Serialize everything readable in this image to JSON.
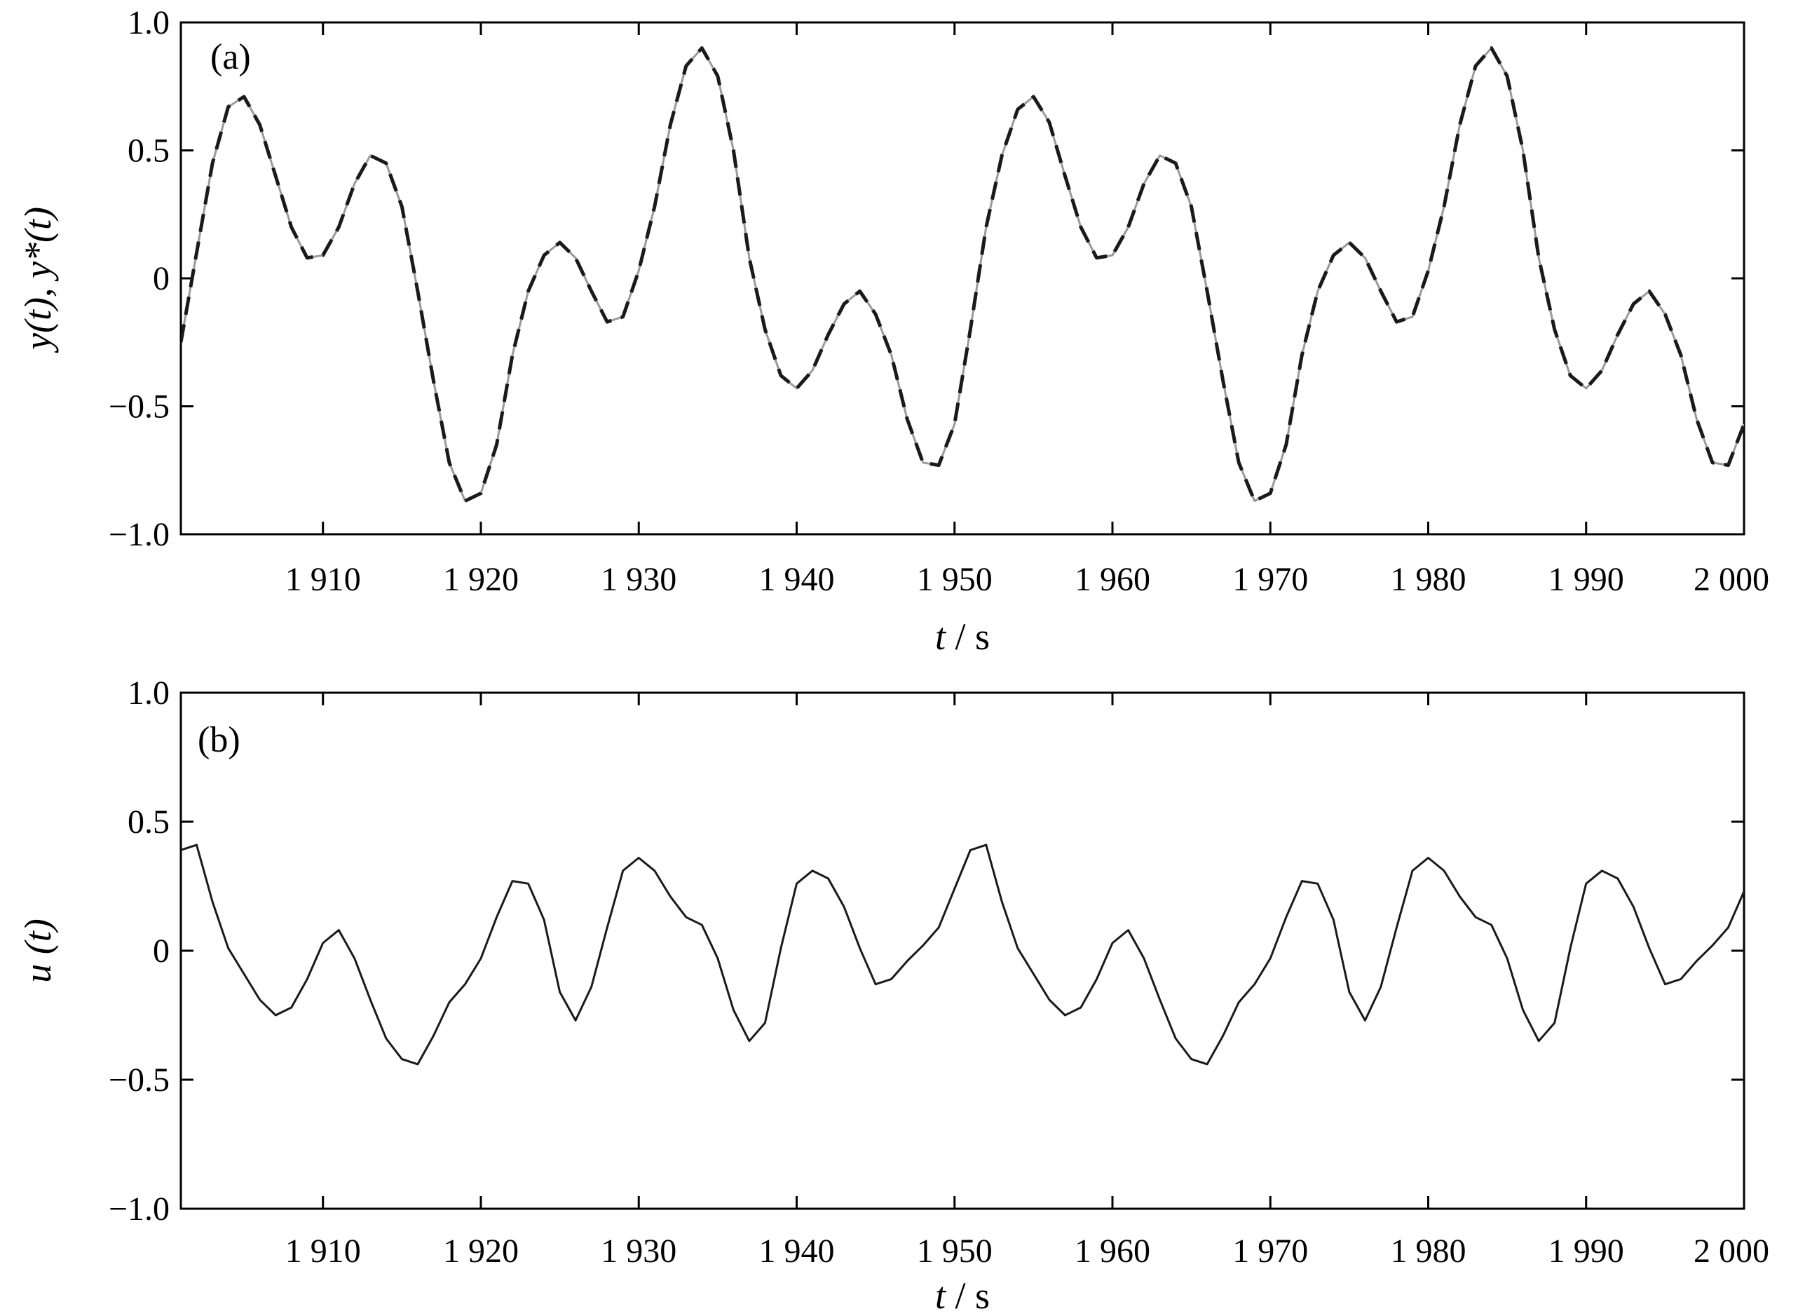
{
  "chart_data": [
    {
      "type": "line",
      "panel_label": "(a)",
      "xlabel_var": "t",
      "xlabel_sep": " / ",
      "xlabel_unit": "s",
      "ylabel": "y(t), y*(t)",
      "xlim": [
        1901,
        2000
      ],
      "ylim": [
        -1.0,
        1.0
      ],
      "xticks": [
        1910,
        1920,
        1930,
        1940,
        1950,
        1960,
        1970,
        1980,
        1990,
        2000
      ],
      "xtick_labels": [
        "1 910",
        "1 920",
        "1 930",
        "1 940",
        "1 950",
        "1 960",
        "1 970",
        "1 980",
        "1 990",
        "2 000"
      ],
      "yticks": [
        1.0,
        0.5,
        0,
        -0.5,
        -1.0
      ],
      "ytick_labels": [
        "1.0",
        "0.5",
        "0",
        "−0.5",
        "−1.0"
      ],
      "grid": false,
      "x": [
        1901,
        1902,
        1903,
        1904,
        1905,
        1906,
        1907,
        1908,
        1909,
        1910,
        1911,
        1912,
        1913,
        1914,
        1915,
        1916,
        1917,
        1918,
        1919,
        1920,
        1921,
        1922,
        1923,
        1924,
        1925,
        1926,
        1927,
        1928,
        1929,
        1930,
        1931,
        1932,
        1933,
        1934,
        1935,
        1936,
        1937,
        1938,
        1939,
        1940,
        1941,
        1942,
        1943,
        1944,
        1945,
        1946,
        1947,
        1948,
        1949,
        1950,
        1951,
        1952,
        1953,
        1954,
        1955,
        1956,
        1957,
        1958,
        1959,
        1960,
        1961,
        1962,
        1963,
        1964,
        1965,
        1966,
        1967,
        1968,
        1969,
        1970,
        1971,
        1972,
        1973,
        1974,
        1975,
        1976,
        1977,
        1978,
        1979,
        1980,
        1981,
        1982,
        1983,
        1984,
        1985,
        1986,
        1987,
        1988,
        1989,
        1990,
        1991,
        1992,
        1993,
        1994,
        1995,
        1996,
        1997,
        1998,
        1999,
        2000
      ],
      "series": [
        {
          "style": "solid-gray",
          "color": "#9a9a9a",
          "values": [
            -0.25,
            0.1,
            0.45,
            0.67,
            0.71,
            0.6,
            0.4,
            0.2,
            0.08,
            0.09,
            0.2,
            0.37,
            0.48,
            0.45,
            0.28,
            -0.05,
            -0.4,
            -0.72,
            -0.87,
            -0.84,
            -0.65,
            -0.3,
            -0.05,
            0.09,
            0.14,
            0.08,
            -0.05,
            -0.17,
            -0.15,
            0.03,
            0.28,
            0.6,
            0.83,
            0.9,
            0.79,
            0.5,
            0.08,
            -0.2,
            -0.38,
            -0.43,
            -0.36,
            -0.22,
            -0.1,
            -0.05,
            -0.14,
            -0.3,
            -0.55,
            -0.72,
            -0.73,
            -0.57,
            -0.2,
            0.2,
            0.48,
            0.66,
            0.71,
            0.61,
            0.4,
            0.2,
            0.08,
            0.09,
            0.2,
            0.37,
            0.48,
            0.45,
            0.28,
            -0.05,
            -0.4,
            -0.72,
            -0.87,
            -0.84,
            -0.65,
            -0.3,
            -0.05,
            0.09,
            0.14,
            0.08,
            -0.05,
            -0.17,
            -0.15,
            0.03,
            0.28,
            0.6,
            0.83,
            0.9,
            0.79,
            0.5,
            0.08,
            -0.2,
            -0.38,
            -0.43,
            -0.36,
            -0.22,
            -0.1,
            -0.05,
            -0.14,
            -0.3,
            -0.55,
            -0.72,
            -0.73,
            -0.57
          ]
        },
        {
          "style": "dashed-black",
          "color": "#1a1a1a",
          "values": [
            -0.25,
            0.1,
            0.45,
            0.67,
            0.71,
            0.6,
            0.4,
            0.2,
            0.08,
            0.09,
            0.2,
            0.37,
            0.48,
            0.45,
            0.28,
            -0.05,
            -0.4,
            -0.72,
            -0.87,
            -0.84,
            -0.65,
            -0.3,
            -0.05,
            0.09,
            0.14,
            0.08,
            -0.05,
            -0.17,
            -0.15,
            0.03,
            0.28,
            0.6,
            0.83,
            0.9,
            0.79,
            0.5,
            0.08,
            -0.2,
            -0.38,
            -0.43,
            -0.36,
            -0.22,
            -0.1,
            -0.05,
            -0.14,
            -0.3,
            -0.55,
            -0.72,
            -0.73,
            -0.57,
            -0.2,
            0.2,
            0.48,
            0.66,
            0.71,
            0.61,
            0.4,
            0.2,
            0.08,
            0.09,
            0.2,
            0.37,
            0.48,
            0.45,
            0.28,
            -0.05,
            -0.4,
            -0.72,
            -0.87,
            -0.84,
            -0.65,
            -0.3,
            -0.05,
            0.09,
            0.14,
            0.08,
            -0.05,
            -0.17,
            -0.15,
            0.03,
            0.28,
            0.6,
            0.83,
            0.9,
            0.79,
            0.5,
            0.08,
            -0.2,
            -0.38,
            -0.43,
            -0.36,
            -0.22,
            -0.1,
            -0.05,
            -0.14,
            -0.3,
            -0.55,
            -0.72,
            -0.73,
            -0.57
          ]
        }
      ]
    },
    {
      "type": "line",
      "panel_label": "(b)",
      "xlabel_var": "t",
      "xlabel_sep": " / ",
      "xlabel_unit": "s",
      "ylabel": "u (t)",
      "xlim": [
        1901,
        2000
      ],
      "ylim": [
        -1.0,
        1.0
      ],
      "xticks": [
        1910,
        1920,
        1930,
        1940,
        1950,
        1960,
        1970,
        1980,
        1990,
        2000
      ],
      "xtick_labels": [
        "1 910",
        "1 920",
        "1 930",
        "1 940",
        "1 950",
        "1 960",
        "1 970",
        "1 980",
        "1 990",
        "2 000"
      ],
      "yticks": [
        1.0,
        0.5,
        0,
        -0.5,
        -1.0
      ],
      "ytick_labels": [
        "1.0",
        "0.5",
        "0",
        "−0.5",
        "−1.0"
      ],
      "grid": false,
      "x": [
        1901,
        1902,
        1903,
        1904,
        1905,
        1906,
        1907,
        1908,
        1909,
        1910,
        1911,
        1912,
        1913,
        1914,
        1915,
        1916,
        1917,
        1918,
        1919,
        1920,
        1921,
        1922,
        1923,
        1924,
        1925,
        1926,
        1927,
        1928,
        1929,
        1930,
        1931,
        1932,
        1933,
        1934,
        1935,
        1936,
        1937,
        1938,
        1939,
        1940,
        1941,
        1942,
        1943,
        1944,
        1945,
        1946,
        1947,
        1948,
        1949,
        1950,
        1951,
        1952,
        1953,
        1954,
        1955,
        1956,
        1957,
        1958,
        1959,
        1960,
        1961,
        1962,
        1963,
        1964,
        1965,
        1966,
        1967,
        1968,
        1969,
        1970,
        1971,
        1972,
        1973,
        1974,
        1975,
        1976,
        1977,
        1978,
        1979,
        1980,
        1981,
        1982,
        1983,
        1984,
        1985,
        1986,
        1987,
        1988,
        1989,
        1990,
        1991,
        1992,
        1993,
        1994,
        1995,
        1996,
        1997,
        1998,
        1999,
        2000
      ],
      "series": [
        {
          "style": "solid-black",
          "color": "#1a1a1a",
          "values": [
            0.39,
            0.41,
            0.19,
            0.01,
            -0.09,
            -0.19,
            -0.25,
            -0.22,
            -0.11,
            0.03,
            0.08,
            -0.03,
            -0.19,
            -0.34,
            -0.42,
            -0.44,
            -0.33,
            -0.2,
            -0.13,
            -0.03,
            0.13,
            0.27,
            0.26,
            0.12,
            -0.16,
            -0.27,
            -0.14,
            0.09,
            0.31,
            0.36,
            0.31,
            0.21,
            0.13,
            0.1,
            -0.03,
            -0.23,
            -0.35,
            -0.28,
            0.01,
            0.26,
            0.31,
            0.28,
            0.17,
            0.01,
            -0.13,
            -0.11,
            -0.04,
            0.02,
            0.09,
            0.24,
            0.39,
            0.41,
            0.19,
            0.01,
            -0.09,
            -0.19,
            -0.25,
            -0.22,
            -0.11,
            0.03,
            0.08,
            -0.03,
            -0.19,
            -0.34,
            -0.42,
            -0.44,
            -0.33,
            -0.2,
            -0.13,
            -0.03,
            0.13,
            0.27,
            0.26,
            0.12,
            -0.16,
            -0.27,
            -0.14,
            0.09,
            0.31,
            0.36,
            0.31,
            0.21,
            0.13,
            0.1,
            -0.03,
            -0.23,
            -0.35,
            -0.28,
            0.01,
            0.26,
            0.31,
            0.28,
            0.17,
            0.01,
            -0.13,
            -0.11,
            -0.04,
            0.02,
            0.09,
            0.23
          ]
        }
      ]
    }
  ]
}
